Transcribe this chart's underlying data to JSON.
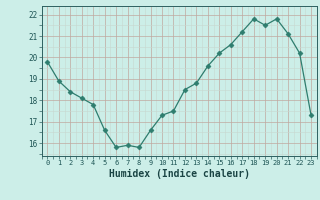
{
  "x": [
    0,
    1,
    2,
    3,
    4,
    5,
    6,
    7,
    8,
    9,
    10,
    11,
    12,
    13,
    14,
    15,
    16,
    17,
    18,
    19,
    20,
    21,
    22,
    23
  ],
  "y": [
    19.8,
    18.9,
    18.4,
    18.1,
    17.8,
    16.6,
    15.8,
    15.9,
    15.8,
    16.6,
    17.3,
    17.5,
    18.5,
    18.8,
    19.6,
    20.2,
    20.6,
    21.2,
    21.8,
    21.5,
    21.8,
    21.1,
    20.2,
    17.3
  ],
  "line_color": "#2e7d6e",
  "marker": "D",
  "marker_size": 2.5,
  "bg_color": "#cceee8",
  "grid_color_major": "#c8a8a0",
  "grid_color_minor": "#ddd0c8",
  "xlabel": "Humidex (Indice chaleur)",
  "xlabel_fontsize": 7,
  "ytick_labels": [
    "16",
    "17",
    "18",
    "19",
    "20",
    "21",
    "22"
  ],
  "ytick_values": [
    16,
    17,
    18,
    19,
    20,
    21,
    22
  ],
  "xtick_labels": [
    "0",
    "1",
    "2",
    "3",
    "4",
    "5",
    "6",
    "7",
    "8",
    "9",
    "10",
    "11",
    "12",
    "13",
    "14",
    "15",
    "16",
    "17",
    "18",
    "19",
    "20",
    "21",
    "22",
    "23"
  ],
  "ylim": [
    15.4,
    22.4
  ],
  "xlim": [
    -0.5,
    23.5
  ]
}
